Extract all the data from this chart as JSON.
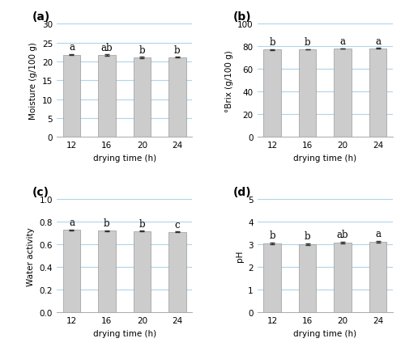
{
  "categories": [
    "12",
    "16",
    "20",
    "24"
  ],
  "xlabel": "drying time (h)",
  "a_values": [
    21.8,
    21.65,
    21.1,
    21.1
  ],
  "a_errors": [
    0.15,
    0.2,
    0.12,
    0.1
  ],
  "a_labels": [
    "a",
    "ab",
    "b",
    "b"
  ],
  "a_ylabel": "Moisture (g/100 g)",
  "a_ylim": [
    0,
    30
  ],
  "a_yticks": [
    0,
    5,
    10,
    15,
    20,
    25,
    30
  ],
  "b_values": [
    77.2,
    77.4,
    78.2,
    78.4
  ],
  "b_errors": [
    0.3,
    0.25,
    0.2,
    0.2
  ],
  "b_labels": [
    "b",
    "b",
    "a",
    "a"
  ],
  "b_ylabel": "°Brix (g/100 g)",
  "b_ylim": [
    0,
    100
  ],
  "b_yticks": [
    0,
    20,
    40,
    60,
    80,
    100
  ],
  "c_values": [
    0.728,
    0.722,
    0.718,
    0.71
  ],
  "c_errors": [
    0.005,
    0.004,
    0.004,
    0.004
  ],
  "c_labels": [
    "a",
    "b",
    "b",
    "c"
  ],
  "c_ylabel": "Water activity",
  "c_ylim": [
    0.0,
    1.0
  ],
  "c_yticks": [
    0.0,
    0.2,
    0.4,
    0.6,
    0.8,
    1.0
  ],
  "d_values": [
    3.05,
    3.02,
    3.08,
    3.12
  ],
  "d_errors": [
    0.04,
    0.03,
    0.04,
    0.04
  ],
  "d_labels": [
    "b",
    "b",
    "ab",
    "a"
  ],
  "d_ylabel": "pH",
  "d_ylim": [
    0,
    5
  ],
  "d_yticks": [
    0,
    1,
    2,
    3,
    4,
    5
  ],
  "bar_color": "#cccccc",
  "bar_edge_color": "#999999",
  "error_color": "#333333",
  "grid_color": "#b0d4e8",
  "label_fontsize": 7.5,
  "tick_fontsize": 7.5,
  "letter_fontsize": 8.5,
  "panel_label_fontsize": 10
}
